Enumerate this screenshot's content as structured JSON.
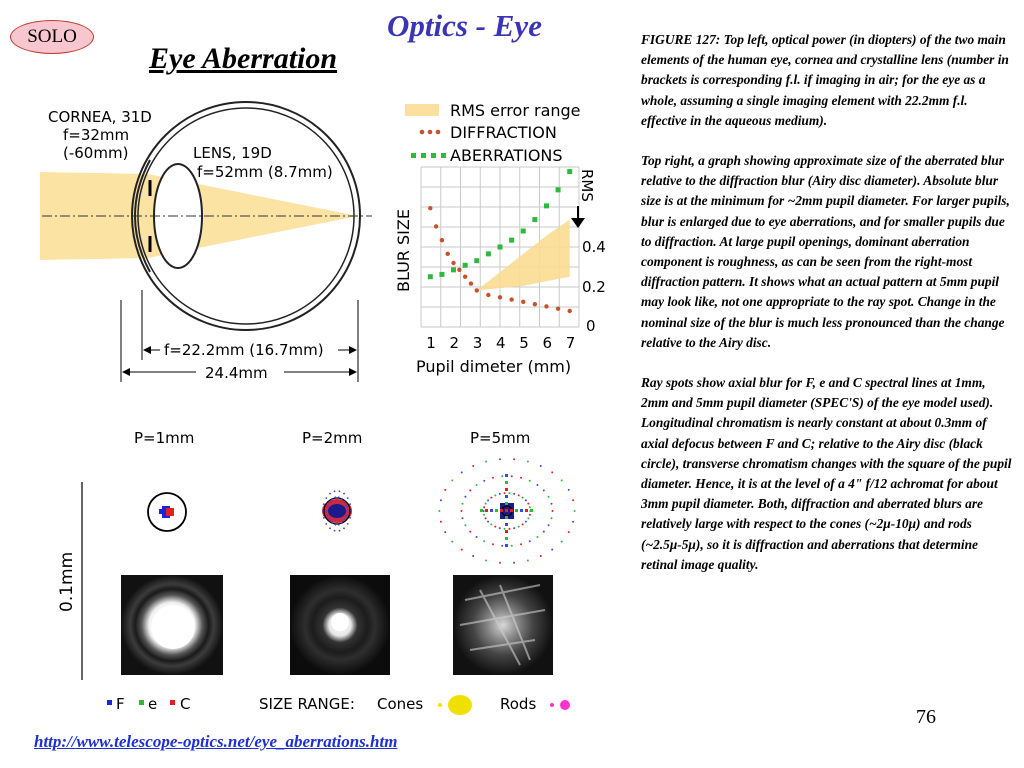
{
  "header": {
    "badge": "SOLO",
    "title": "Optics - Eye",
    "subtitle": "Eye Aberration"
  },
  "eye_diagram": {
    "cornea_label": "CORNEA, 31D",
    "cornea_fl": "f=32mm",
    "cornea_air": "(-60mm)",
    "lens_label": "LENS, 19D",
    "lens_fl": "f=52mm (8.7mm)",
    "eye_fl": "f=22.2mm (16.7mm)",
    "eye_length": "24.4mm"
  },
  "chart_data": {
    "type": "scatter",
    "ylabel": "BLUR SIZE",
    "y2label": "RMS",
    "xlabel": "Pupil dimeter (mm)",
    "x_ticks": [
      "1",
      "2",
      "3",
      "4",
      "5",
      "6",
      "7"
    ],
    "y2_ticks": [
      "0.4",
      "0.2",
      "0"
    ],
    "xlim": [
      0.6,
      7.4
    ],
    "y2lim": [
      0,
      0.7
    ],
    "legend": [
      "RMS error range",
      "DIFFRACTION",
      "ABERRATIONS"
    ],
    "legend_position": "top",
    "grid": true,
    "series": [
      {
        "name": "DIFFRACTION",
        "color": "#c8502a",
        "x": [
          1.0,
          1.25,
          1.5,
          1.75,
          2.0,
          2.25,
          2.5,
          2.75,
          3.0,
          3.5,
          4.0,
          4.5,
          5.0,
          5.5,
          6.0,
          6.5,
          7.0
        ],
        "y": [
          0.52,
          0.44,
          0.38,
          0.32,
          0.28,
          0.25,
          0.22,
          0.19,
          0.16,
          0.14,
          0.13,
          0.12,
          0.11,
          0.1,
          0.09,
          0.08,
          0.07
        ]
      },
      {
        "name": "ABERRATIONS",
        "color": "#2eb83c",
        "x": [
          1.0,
          1.5,
          2.0,
          2.5,
          3.0,
          3.5,
          4.0,
          4.5,
          5.0,
          5.5,
          6.0,
          6.5,
          7.0
        ],
        "y": [
          0.22,
          0.23,
          0.25,
          0.27,
          0.29,
          0.32,
          0.35,
          0.38,
          0.42,
          0.47,
          0.53,
          0.6,
          0.68
        ]
      },
      {
        "name": "RMS error range",
        "color": "#f9dc92",
        "type": "area",
        "x": [
          3.0,
          4.0,
          5.0,
          6.0,
          7.0
        ],
        "upper": [
          0.16,
          0.24,
          0.32,
          0.4,
          0.47
        ],
        "lower": [
          0.16,
          0.17,
          0.18,
          0.2,
          0.22
        ]
      }
    ]
  },
  "spots": {
    "pupil_labels": [
      "P=1mm",
      "P=2mm",
      "P=5mm"
    ],
    "scale_label": "0.1mm",
    "legend_f": "F",
    "legend_e": "e",
    "legend_c": "C",
    "size_range": "SIZE RANGE:",
    "cones": "Cones",
    "rods": "Rods"
  },
  "caption": {
    "p1": "FIGURE 127: Top left, optical power (in diopters) of the two main elements of the human eye, cornea and crystalline lens (number in brackets is corresponding f.l. if imaging in air; for the eye as a whole, assuming a single imaging element with 22.2mm f.l. effective in the aqueous medium).",
    "p2": "Top right, a graph showing approximate size of the aberrated blur relative to the diffraction blur (Airy disc diameter). Absolute blur size is at the minimum for ~2mm pupil diameter. For larger pupils, blur is enlarged due to eye aberrations, and for smaller pupils due to diffraction. At large pupil openings, dominant aberration component is roughness, as can be seen from the right-most diffraction pattern. It shows what an actual pattern at 5mm pupil may look like, not one appropriate to the ray spot. Change in the nominal size of the blur is much less pronounced than the change relative to the Airy disc.",
    "p3": "Ray spots show axial blur for F, e and C spectral lines at 1mm, 2mm and 5mm pupil diameter (SPEC'S) of the eye model used). Longitudinal chromatism is nearly constant at about 0.3mm of axial defocus between F and C; relative to the Airy disc (black circle), transverse chromatism changes with the square of the pupil diameter. Hence, it is at the level of a 4\" f/12 achromat for about 3mm pupil diameter. Both, diffraction and aberrated blurs are relatively large with respect to the cones (~2μ-10μ) and rods (~2.5μ-5μ), so it is diffraction and aberrations that determine retinal image quality."
  },
  "footer": {
    "page": "76",
    "link": "http://www.telescope-optics.net/eye_aberrations.htm"
  }
}
